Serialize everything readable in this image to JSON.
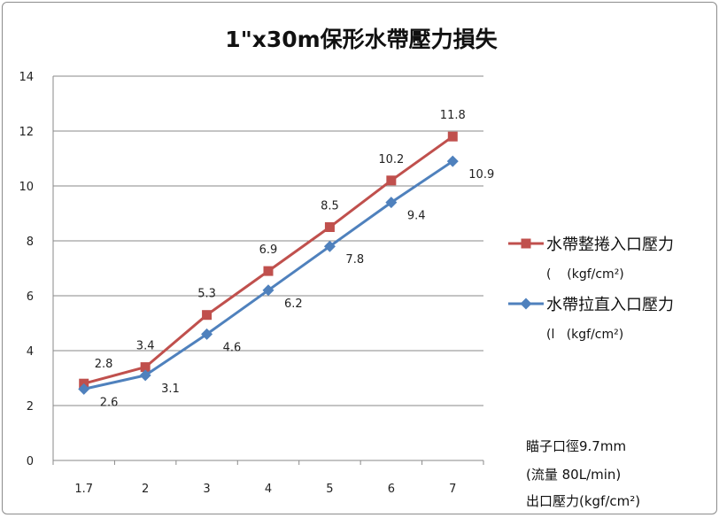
{
  "chart_data": {
    "type": "line",
    "title": "1\"x30m保形水帶壓力損失",
    "categories": [
      "1.7",
      "2",
      "3",
      "4",
      "5",
      "6",
      "7"
    ],
    "ylim": [
      0,
      14
    ],
    "yticks": [
      "0",
      "2",
      "4",
      "6",
      "8",
      "10",
      "12",
      "14"
    ],
    "grid": true,
    "legend_position": "right",
    "series": [
      {
        "name": "水帶整捲入口壓力",
        "unit": "(    (kgf/cm²)",
        "color": "#c0504d",
        "marker": "square",
        "values": [
          2.8,
          3.4,
          5.3,
          6.9,
          8.5,
          10.2,
          11.8
        ]
      },
      {
        "name": "水帶拉直入口壓力",
        "unit": "(l   (kgf/cm²)",
        "color": "#4f81bd",
        "marker": "diamond",
        "values": [
          2.6,
          3.1,
          4.6,
          6.2,
          7.8,
          9.4,
          10.9
        ]
      }
    ],
    "notes": [
      "瞄子口徑9.7mm",
      "(流量 80L/min)",
      "出口壓力(kgf/cm²)"
    ]
  }
}
